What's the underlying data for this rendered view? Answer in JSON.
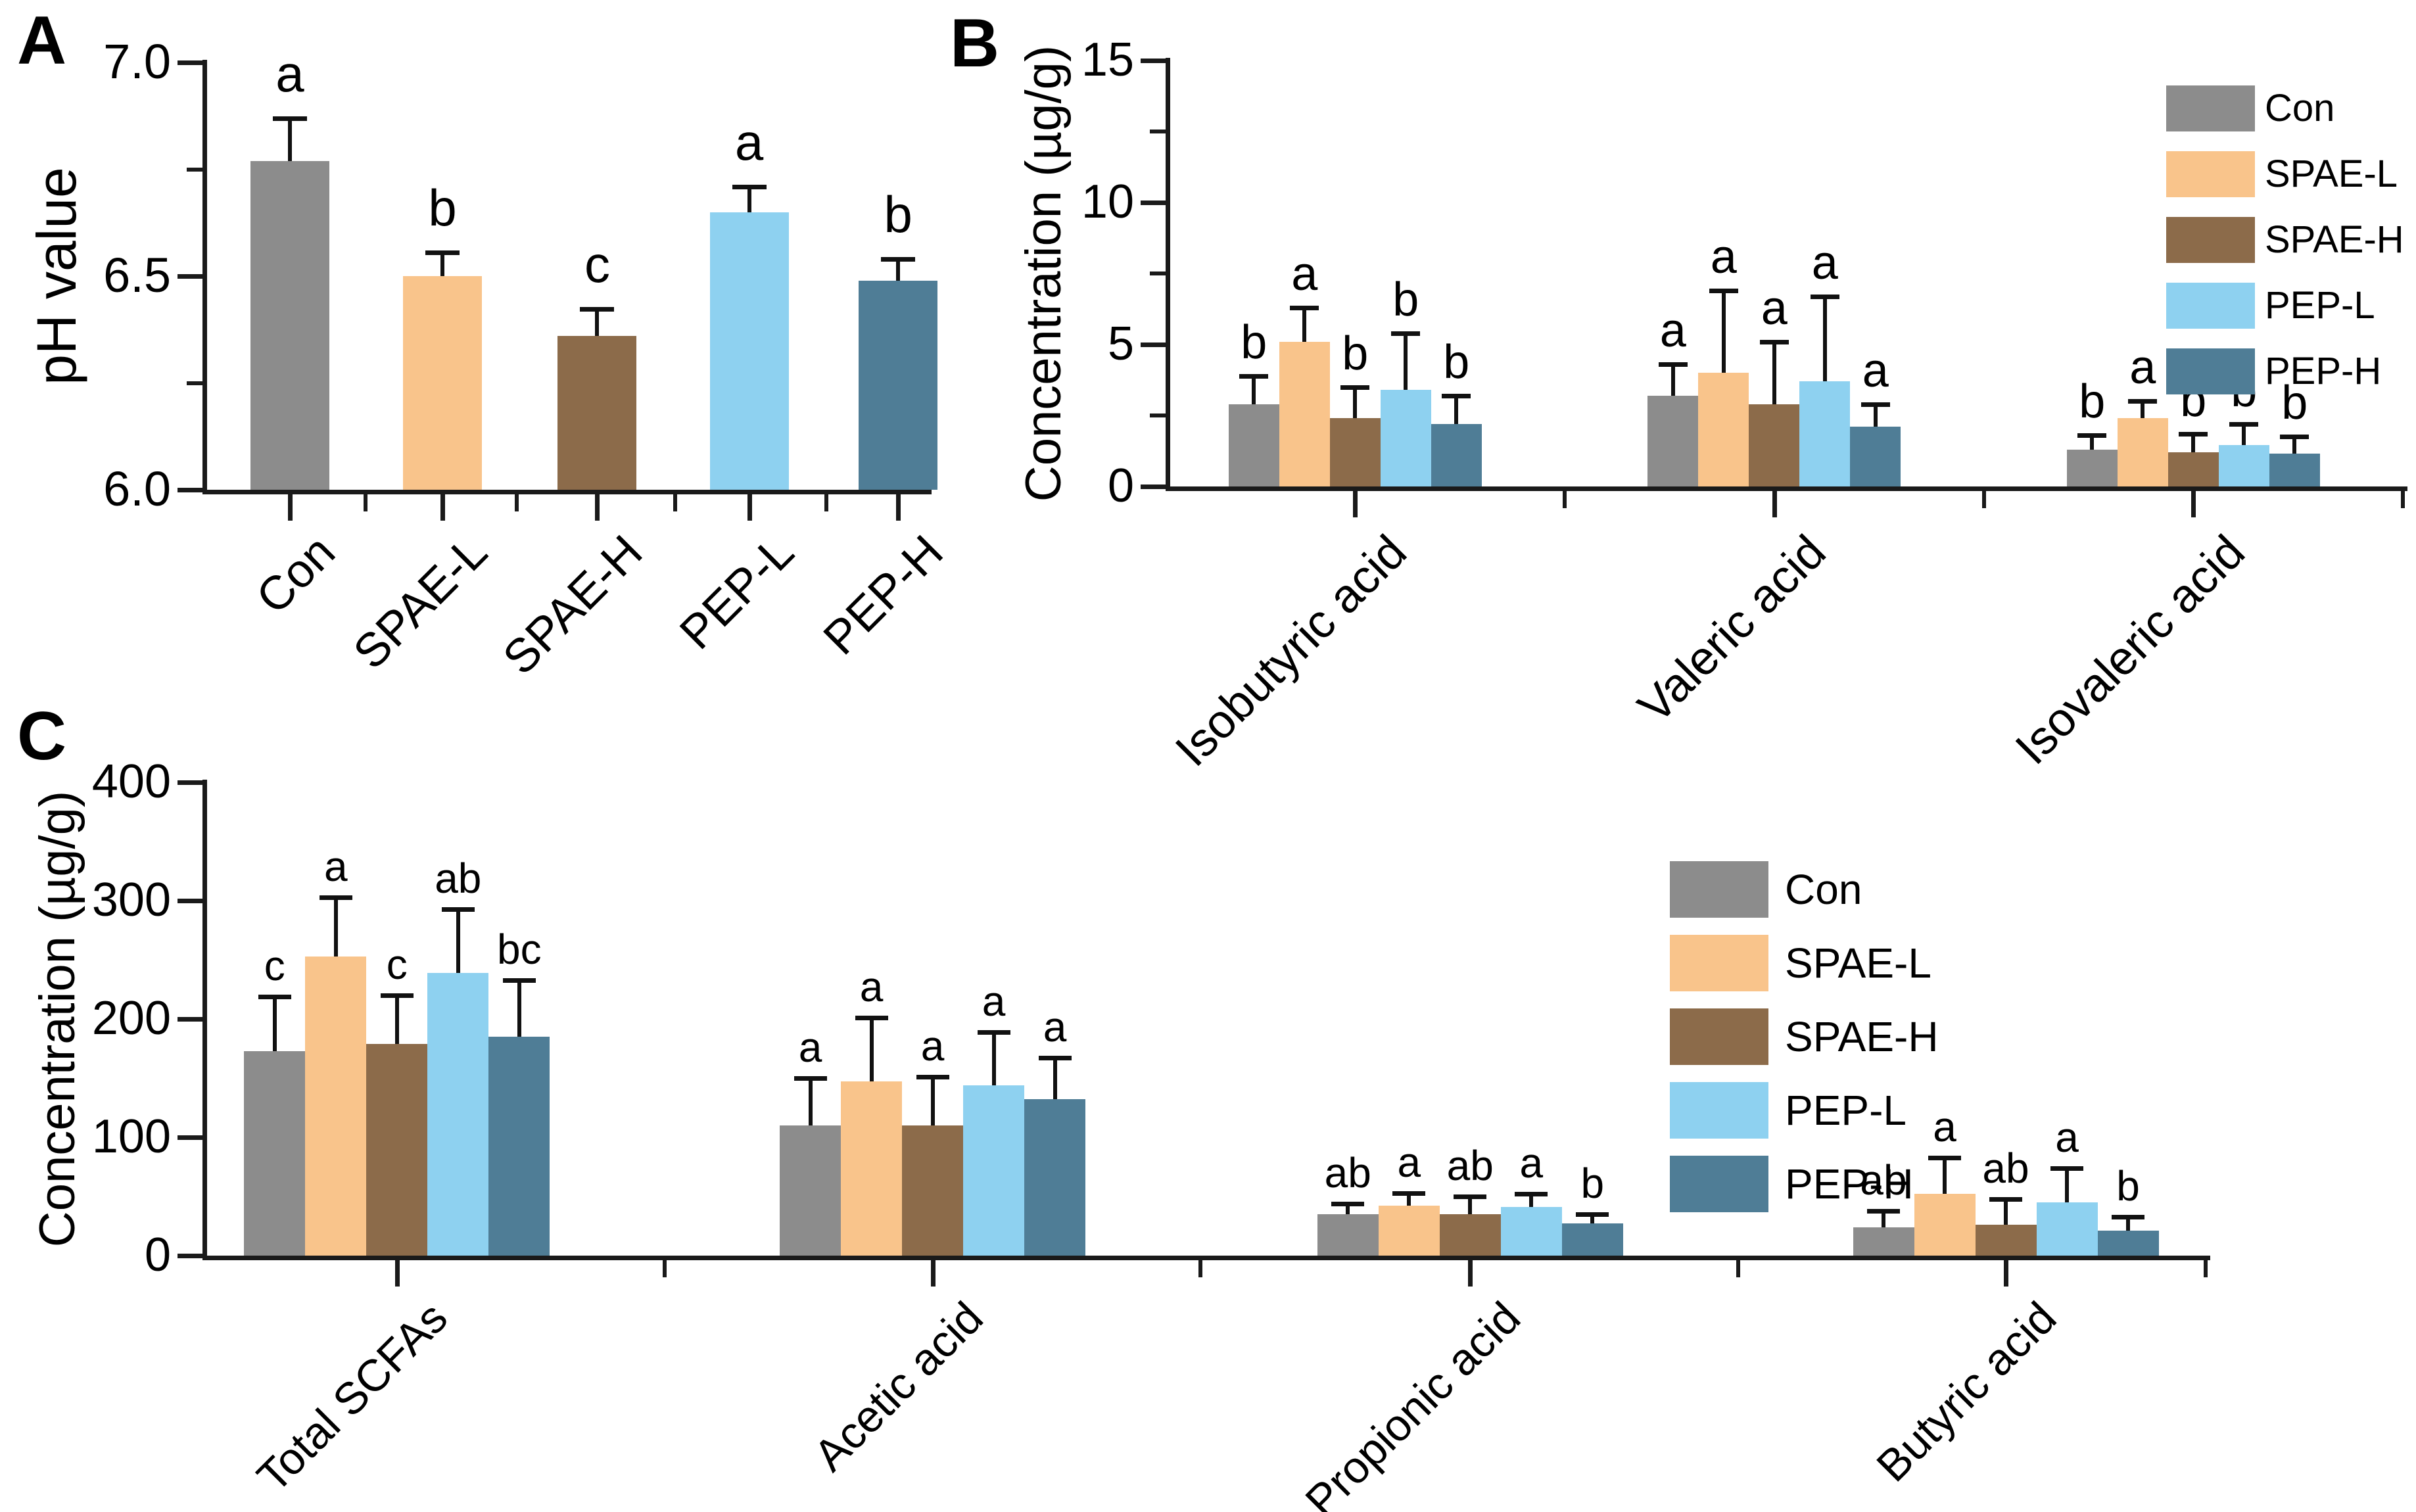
{
  "palette": {
    "Con": "#8c8c8c",
    "SPAE-L": "#f9c48b",
    "SPAE-H": "#8c6b4a",
    "PEP-L": "#8ed1f0",
    "PEP-H": "#4f7d96"
  },
  "chart_data": [
    {
      "panel": "A",
      "type": "bar",
      "ylabel": "pH value",
      "xlabel": "",
      "ylim": [
        6.0,
        7.0
      ],
      "yticks": [
        "6.0",
        "6.5",
        "7.0"
      ],
      "grid": false,
      "categories": [
        "Con",
        "SPAE-L",
        "SPAE-H",
        "PEP-L",
        "PEP-H"
      ],
      "values": [
        6.77,
        6.5,
        6.36,
        6.65,
        6.49
      ],
      "errors": [
        0.1,
        0.055,
        0.063,
        0.06,
        0.05
      ],
      "sig_letters": [
        "a",
        "b",
        "c",
        "a",
        "b"
      ]
    },
    {
      "panel": "B",
      "type": "grouped-bar",
      "ylabel": "Concentration (µg/g)",
      "xlabel": "",
      "ylim": [
        0,
        15
      ],
      "yticks": [
        "0",
        "5",
        "10",
        "15"
      ],
      "grid": false,
      "legend_position": "top-right",
      "legend": [
        "Con",
        "SPAE-L",
        "SPAE-H",
        "PEP-L",
        "PEP-H"
      ],
      "categories": [
        "Isobutyric acid",
        "Valeric acid",
        "Isovaleric acid"
      ],
      "series": [
        {
          "name": "Con",
          "values": [
            2.9,
            3.2,
            1.3
          ],
          "errors": [
            1.0,
            1.1,
            0.5
          ],
          "letters": [
            "b",
            "a",
            "b"
          ]
        },
        {
          "name": "SPAE-L",
          "values": [
            5.1,
            4.0,
            2.4
          ],
          "errors": [
            1.2,
            2.9,
            0.6
          ],
          "letters": [
            "a",
            "a",
            "a"
          ]
        },
        {
          "name": "SPAE-H",
          "values": [
            2.4,
            2.9,
            1.2
          ],
          "errors": [
            1.1,
            2.2,
            0.65
          ],
          "letters": [
            "b",
            "a",
            "b"
          ]
        },
        {
          "name": "PEP-L",
          "values": [
            3.4,
            3.7,
            1.45
          ],
          "errors": [
            2.0,
            3.0,
            0.75
          ],
          "letters": [
            "b",
            "a",
            "b"
          ]
        },
        {
          "name": "PEP-H",
          "values": [
            2.2,
            2.1,
            1.15
          ],
          "errors": [
            1.0,
            0.8,
            0.6
          ],
          "letters": [
            "b",
            "a",
            "b"
          ]
        }
      ]
    },
    {
      "panel": "C",
      "type": "grouped-bar",
      "ylabel": "Concentration (µg/g)",
      "xlabel": "",
      "ylim": [
        0,
        400
      ],
      "yticks": [
        "0",
        "100",
        "200",
        "300",
        "400"
      ],
      "grid": false,
      "legend_position": "inner-right",
      "legend": [
        "Con",
        "SPAE-L",
        "SPAE-H",
        "PEP-L",
        "PEP-H"
      ],
      "categories": [
        "Total SCFAs",
        "Acetic acid",
        "Propionic acid",
        "Butyric acid"
      ],
      "series": [
        {
          "name": "Con",
          "values": [
            173,
            110,
            35,
            24
          ],
          "errors": [
            46,
            40,
            9,
            14
          ],
          "letters": [
            "c",
            "a",
            "ab",
            "ab"
          ]
        },
        {
          "name": "SPAE-L",
          "values": [
            253,
            147,
            42,
            52
          ],
          "errors": [
            50,
            54,
            11,
            31
          ],
          "letters": [
            "a",
            "a",
            "a",
            "a"
          ]
        },
        {
          "name": "SPAE-H",
          "values": [
            179,
            110,
            35,
            26
          ],
          "errors": [
            41,
            41,
            15,
            22
          ],
          "letters": [
            "c",
            "a",
            "ab",
            "ab"
          ]
        },
        {
          "name": "PEP-L",
          "values": [
            239,
            144,
            41,
            45
          ],
          "errors": [
            54,
            45,
            11,
            29
          ],
          "letters": [
            "ab",
            "a",
            "a",
            "a"
          ]
        },
        {
          "name": "PEP-H",
          "values": [
            185,
            132,
            27,
            21
          ],
          "errors": [
            48,
            35,
            8,
            12
          ],
          "letters": [
            "bc",
            "a",
            "b",
            "b"
          ]
        }
      ]
    }
  ]
}
